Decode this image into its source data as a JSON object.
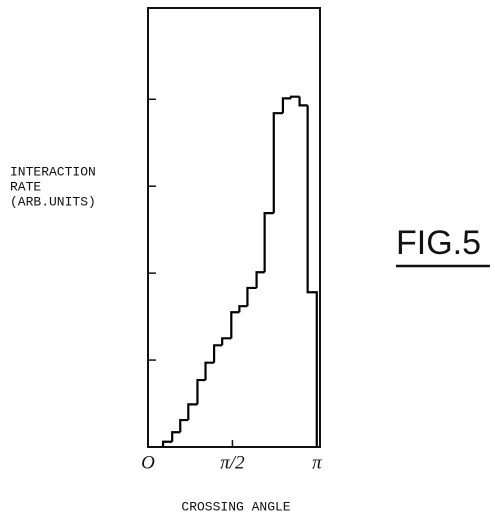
{
  "chart_data": {
    "type": "histogram",
    "ylabel": [
      "INTERACTION",
      "RATE",
      "(ARB.UNITS)"
    ],
    "xlabel": "CROSSING ANGLE",
    "annotation": "FIG.5",
    "bins": [
      0.28,
      0.45,
      0.6,
      0.75,
      0.92,
      1.07,
      1.23,
      1.38,
      1.55,
      1.7,
      1.85,
      2.02,
      2.17,
      2.34,
      2.51,
      2.66,
      2.82,
      2.97,
      3.14
    ],
    "values": [
      0.06,
      0.17,
      0.31,
      0.49,
      0.77,
      0.97,
      1.17,
      1.25,
      1.55,
      1.62,
      1.83,
      2.01,
      2.69,
      3.84,
      4.01,
      4.03,
      3.93,
      1.78
    ],
    "color": "#000000",
    "xlim": [
      0,
      3.2
    ],
    "ylim": [
      0,
      5.05
    ],
    "xticks": [
      {
        "value": 0,
        "label": "O"
      },
      {
        "value": 1.5708,
        "label": "π/2"
      },
      {
        "value": 3.1416,
        "label": "π"
      }
    ],
    "yticks": [
      1,
      2,
      3,
      4
    ]
  }
}
